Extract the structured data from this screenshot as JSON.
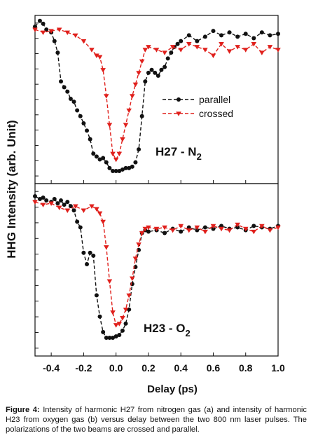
{
  "chart_data": [
    {
      "type": "line",
      "panel": "a",
      "annotation": "H27 - N",
      "annotation_subscript": "2",
      "series": [
        {
          "name": "parallel",
          "color": "#111111",
          "marker": "circle",
          "x": [
            -0.5,
            -0.47,
            -0.45,
            -0.43,
            -0.4,
            -0.38,
            -0.36,
            -0.34,
            -0.32,
            -0.3,
            -0.28,
            -0.26,
            -0.24,
            -0.22,
            -0.2,
            -0.18,
            -0.16,
            -0.14,
            -0.12,
            -0.1,
            -0.08,
            -0.06,
            -0.04,
            -0.02,
            0.0,
            0.02,
            0.04,
            0.06,
            0.08,
            0.1,
            0.12,
            0.14,
            0.16,
            0.18,
            0.2,
            0.22,
            0.24,
            0.26,
            0.28,
            0.3,
            0.32,
            0.34,
            0.36,
            0.38,
            0.4,
            0.45,
            0.5,
            0.55,
            0.6,
            0.65,
            0.7,
            0.75,
            0.8,
            0.85,
            0.9,
            0.95,
            1.0
          ],
          "y": [
            1.0,
            1.04,
            1.02,
            0.98,
            0.96,
            0.9,
            0.82,
            0.62,
            0.58,
            0.55,
            0.5,
            0.48,
            0.42,
            0.38,
            0.33,
            0.28,
            0.22,
            0.12,
            0.1,
            0.08,
            0.09,
            0.06,
            0.02,
            0.0,
            0.0,
            0.0,
            0.01,
            0.02,
            0.02,
            0.03,
            0.06,
            0.15,
            0.38,
            0.62,
            0.68,
            0.7,
            0.68,
            0.66,
            0.7,
            0.72,
            0.78,
            0.82,
            0.86,
            0.88,
            0.9,
            0.94,
            0.9,
            0.93,
            0.97,
            0.94,
            0.96,
            0.93,
            0.95,
            0.92,
            0.96,
            0.94,
            0.95
          ]
        },
        {
          "name": "crossed",
          "color": "#e0201c",
          "marker": "triangle-down",
          "x": [
            -0.5,
            -0.45,
            -0.4,
            -0.35,
            -0.3,
            -0.25,
            -0.2,
            -0.15,
            -0.12,
            -0.1,
            -0.08,
            -0.06,
            -0.04,
            -0.02,
            0.0,
            0.02,
            0.04,
            0.06,
            0.08,
            0.1,
            0.12,
            0.14,
            0.16,
            0.18,
            0.2,
            0.25,
            0.3,
            0.35,
            0.4,
            0.45,
            0.5,
            0.55,
            0.6,
            0.65,
            0.7,
            0.75,
            0.8,
            0.85,
            0.9,
            0.95,
            1.0
          ],
          "y": [
            0.98,
            0.96,
            0.97,
            0.98,
            0.96,
            0.94,
            0.9,
            0.84,
            0.8,
            0.79,
            0.7,
            0.52,
            0.32,
            0.12,
            0.08,
            0.12,
            0.22,
            0.32,
            0.42,
            0.52,
            0.6,
            0.68,
            0.76,
            0.84,
            0.86,
            0.84,
            0.82,
            0.86,
            0.84,
            0.88,
            0.86,
            0.84,
            0.8,
            0.88,
            0.83,
            0.86,
            0.84,
            0.88,
            0.82,
            0.86,
            0.84
          ]
        }
      ]
    },
    {
      "type": "line",
      "panel": "b",
      "annotation": "H23 - O",
      "annotation_subscript": "2",
      "series": [
        {
          "name": "parallel",
          "color": "#111111",
          "marker": "circle",
          "x": [
            -0.5,
            -0.47,
            -0.45,
            -0.43,
            -0.4,
            -0.38,
            -0.36,
            -0.34,
            -0.32,
            -0.3,
            -0.28,
            -0.26,
            -0.24,
            -0.22,
            -0.2,
            -0.18,
            -0.16,
            -0.14,
            -0.12,
            -0.1,
            -0.08,
            -0.06,
            -0.04,
            -0.02,
            0.0,
            0.02,
            0.04,
            0.06,
            0.08,
            0.1,
            0.12,
            0.14,
            0.16,
            0.18,
            0.2,
            0.25,
            0.3,
            0.35,
            0.4,
            0.45,
            0.5,
            0.55,
            0.6,
            0.65,
            0.7,
            0.75,
            0.8,
            0.85,
            0.9,
            0.95,
            1.0
          ],
          "y": [
            1.0,
            0.98,
            0.99,
            0.97,
            0.96,
            0.98,
            0.95,
            0.97,
            0.94,
            0.96,
            0.93,
            0.9,
            0.82,
            0.78,
            0.6,
            0.52,
            0.6,
            0.58,
            0.3,
            0.15,
            0.04,
            0.0,
            0.0,
            0.0,
            0.01,
            0.02,
            0.05,
            0.1,
            0.2,
            0.38,
            0.5,
            0.62,
            0.74,
            0.76,
            0.75,
            0.76,
            0.74,
            0.77,
            0.75,
            0.78,
            0.76,
            0.78,
            0.77,
            0.79,
            0.77,
            0.78,
            0.76,
            0.79,
            0.78,
            0.77,
            0.79
          ]
        },
        {
          "name": "crossed",
          "color": "#e0201c",
          "marker": "triangle-down",
          "x": [
            -0.5,
            -0.45,
            -0.4,
            -0.35,
            -0.3,
            -0.25,
            -0.2,
            -0.15,
            -0.12,
            -0.1,
            -0.08,
            -0.06,
            -0.04,
            -0.02,
            0.0,
            0.02,
            0.04,
            0.06,
            0.08,
            0.1,
            0.12,
            0.14,
            0.16,
            0.18,
            0.2,
            0.25,
            0.3,
            0.35,
            0.4,
            0.45,
            0.5,
            0.55,
            0.6,
            0.65,
            0.7,
            0.75,
            0.8,
            0.85,
            0.9,
            0.95,
            1.0
          ],
          "y": [
            0.96,
            0.94,
            0.95,
            0.92,
            0.9,
            0.93,
            0.9,
            0.93,
            0.91,
            0.88,
            0.82,
            0.64,
            0.4,
            0.18,
            0.09,
            0.1,
            0.14,
            0.2,
            0.3,
            0.42,
            0.56,
            0.66,
            0.74,
            0.77,
            0.78,
            0.77,
            0.78,
            0.76,
            0.79,
            0.76,
            0.78,
            0.75,
            0.79,
            0.77,
            0.76,
            0.8,
            0.77,
            0.75,
            0.79,
            0.76,
            0.78
          ]
        }
      ]
    }
  ],
  "axes": {
    "ylabel": "HHG Intensity (arb. Unit)",
    "xlabel": "Delay (ps)",
    "xlim": [
      -0.5,
      1.0
    ],
    "xticks": [
      "-0.4",
      "-0.2",
      "0.0",
      "0.2",
      "0.4",
      "0.6",
      "0.8",
      "1.0"
    ],
    "xtick_values": [
      -0.4,
      -0.2,
      0.0,
      0.2,
      0.4,
      0.6,
      0.8,
      1.0
    ],
    "y_tick_count": 11,
    "grid": false,
    "legend_placement": "center-right of top panel"
  },
  "legend": [
    {
      "label": "parallel",
      "color": "#111111",
      "marker": "circle"
    },
    {
      "label": "crossed",
      "color": "#e0201c",
      "marker": "triangle-down"
    }
  ],
  "caption": {
    "label": "Figure 4:",
    "text": "Intensity of harmonic H27 from nitrogen gas (a) and intensity of harmonic H23 from oxygen gas (b) versus delay between the two 800 nm laser pulses. The polarizations of the two beams are crossed and parallel."
  }
}
